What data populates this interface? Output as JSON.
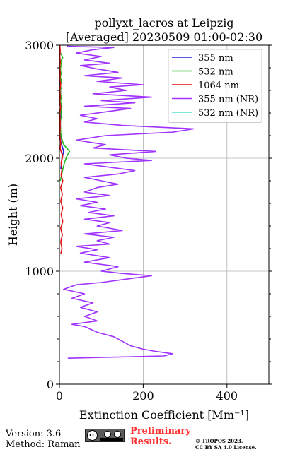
{
  "chart_data": {
    "type": "line",
    "title": "pollyxt_lacros at Leipzig",
    "subtitle": "[Averaged] 20230509 01:00-02:30",
    "xlabel": "Extinction Coefficient [Mm⁻¹]",
    "ylabel": "Height (m)",
    "xlim": [
      0,
      500
    ],
    "ylim": [
      0,
      3000
    ],
    "xticks": [
      0,
      200,
      400
    ],
    "yticks": [
      0,
      1000,
      2000,
      3000
    ],
    "grid": true,
    "legend_position": "top-right",
    "series": [
      {
        "name": "355 nm",
        "color": "#1f1fd6",
        "points": [
          [
            3,
            1900
          ],
          [
            6,
            2000
          ],
          [
            10,
            2060
          ],
          [
            3,
            2150
          ],
          [
            2,
            2350
          ],
          [
            4,
            2400
          ],
          [
            2,
            2520
          ],
          [
            3,
            2550
          ],
          [
            2,
            2650
          ],
          [
            0,
            2900
          ]
        ]
      },
      {
        "name": "532 nm",
        "color": "#22bb22",
        "points": [
          [
            2,
            1800
          ],
          [
            5,
            1850
          ],
          [
            8,
            1900
          ],
          [
            12,
            1960
          ],
          [
            18,
            2020
          ],
          [
            24,
            2060
          ],
          [
            20,
            2080
          ],
          [
            10,
            2120
          ],
          [
            5,
            2180
          ],
          [
            3,
            2220
          ],
          [
            2,
            2300
          ],
          [
            3,
            2350
          ],
          [
            6,
            2360
          ],
          [
            3,
            2400
          ],
          [
            4,
            2440
          ],
          [
            6,
            2470
          ],
          [
            2,
            2500
          ],
          [
            5,
            2540
          ],
          [
            3,
            2560
          ],
          [
            2,
            2600
          ],
          [
            4,
            2620
          ],
          [
            2,
            2640
          ],
          [
            5,
            2680
          ],
          [
            2,
            2720
          ],
          [
            4,
            2750
          ],
          [
            2,
            2790
          ],
          [
            5,
            2830
          ],
          [
            3,
            2860
          ],
          [
            8,
            2890
          ],
          [
            3,
            2930
          ]
        ]
      },
      {
        "name": "1064 nm",
        "color": "#e01010",
        "points": [
          [
            3,
            1150
          ],
          [
            6,
            1200
          ],
          [
            3,
            1260
          ],
          [
            7,
            1320
          ],
          [
            3,
            1380
          ],
          [
            8,
            1440
          ],
          [
            4,
            1500
          ],
          [
            8,
            1560
          ],
          [
            3,
            1620
          ],
          [
            7,
            1680
          ],
          [
            3,
            1740
          ],
          [
            8,
            1800
          ],
          [
            4,
            1850
          ],
          [
            6,
            1900
          ],
          [
            4,
            1960
          ],
          [
            8,
            2020
          ],
          [
            2,
            2080
          ],
          [
            3,
            2140
          ],
          [
            1,
            2200
          ],
          [
            2,
            2300
          ],
          [
            1,
            2400
          ],
          [
            3,
            2450
          ],
          [
            1,
            2500
          ],
          [
            2,
            2550
          ],
          [
            1,
            2600
          ],
          [
            3,
            2650
          ],
          [
            1,
            2700
          ],
          [
            2,
            2750
          ],
          [
            1,
            2800
          ],
          [
            2,
            2850
          ],
          [
            1,
            2900
          ],
          [
            2,
            2950
          ],
          [
            1,
            3000
          ]
        ]
      },
      {
        "name": "355 nm (NR)",
        "color": "#a033ff",
        "points": [
          [
            20,
            230
          ],
          [
            250,
            250
          ],
          [
            270,
            270
          ],
          [
            230,
            290
          ],
          [
            200,
            310
          ],
          [
            170,
            340
          ],
          [
            150,
            380
          ],
          [
            130,
            420
          ],
          [
            90,
            460
          ],
          [
            60,
            510
          ],
          [
            30,
            530
          ],
          [
            90,
            560
          ],
          [
            60,
            600
          ],
          [
            90,
            640
          ],
          [
            50,
            680
          ],
          [
            80,
            720
          ],
          [
            30,
            760
          ],
          [
            60,
            800
          ],
          [
            10,
            840
          ],
          [
            40,
            880
          ],
          [
            100,
            900
          ],
          [
            160,
            930
          ],
          [
            220,
            960
          ],
          [
            150,
            980
          ],
          [
            100,
            1000
          ],
          [
            140,
            1040
          ],
          [
            60,
            1080
          ],
          [
            120,
            1120
          ],
          [
            50,
            1160
          ],
          [
            90,
            1190
          ],
          [
            40,
            1220
          ],
          [
            120,
            1240
          ],
          [
            90,
            1270
          ],
          [
            130,
            1300
          ],
          [
            60,
            1330
          ],
          [
            150,
            1360
          ],
          [
            90,
            1400
          ],
          [
            120,
            1430
          ],
          [
            60,
            1460
          ],
          [
            130,
            1490
          ],
          [
            70,
            1520
          ],
          [
            110,
            1550
          ],
          [
            50,
            1580
          ],
          [
            90,
            1610
          ],
          [
            40,
            1640
          ],
          [
            120,
            1670
          ],
          [
            60,
            1700
          ],
          [
            90,
            1740
          ],
          [
            140,
            1770
          ],
          [
            100,
            1800
          ],
          [
            60,
            1830
          ],
          [
            140,
            1860
          ],
          [
            180,
            1890
          ],
          [
            120,
            1920
          ],
          [
            60,
            1950
          ],
          [
            220,
            1980
          ],
          [
            160,
            2000
          ],
          [
            120,
            2030
          ],
          [
            230,
            2060
          ],
          [
            80,
            2090
          ],
          [
            110,
            2120
          ],
          [
            40,
            2160
          ],
          [
            110,
            2200
          ],
          [
            270,
            2230
          ],
          [
            320,
            2260
          ],
          [
            150,
            2290
          ],
          [
            60,
            2320
          ],
          [
            90,
            2350
          ],
          [
            50,
            2380
          ],
          [
            110,
            2410
          ],
          [
            170,
            2440
          ],
          [
            60,
            2460
          ],
          [
            180,
            2490
          ],
          [
            100,
            2510
          ],
          [
            220,
            2540
          ],
          [
            80,
            2570
          ],
          [
            160,
            2600
          ],
          [
            120,
            2630
          ],
          [
            200,
            2650
          ],
          [
            90,
            2680
          ],
          [
            150,
            2710
          ],
          [
            60,
            2730
          ],
          [
            140,
            2760
          ],
          [
            90,
            2790
          ],
          [
            50,
            2820
          ],
          [
            120,
            2840
          ],
          [
            60,
            2870
          ],
          [
            100,
            2900
          ],
          [
            40,
            2930
          ],
          [
            80,
            2960
          ],
          [
            130,
            2980
          ],
          [
            20,
            2990
          ],
          [
            20,
            3000
          ]
        ]
      },
      {
        "name": "532 nm (NR)",
        "color": "#55e0d0",
        "points": []
      }
    ]
  },
  "footer": {
    "version": "Version: 3.6",
    "method": "Method: Raman",
    "license_badge": "cc by sa",
    "prelim_line1": "Preliminary",
    "prelim_line2": "Results.",
    "copyright_line1": "© TROPOS 2023.",
    "copyright_line2": "CC BY SA 4.0 License."
  }
}
